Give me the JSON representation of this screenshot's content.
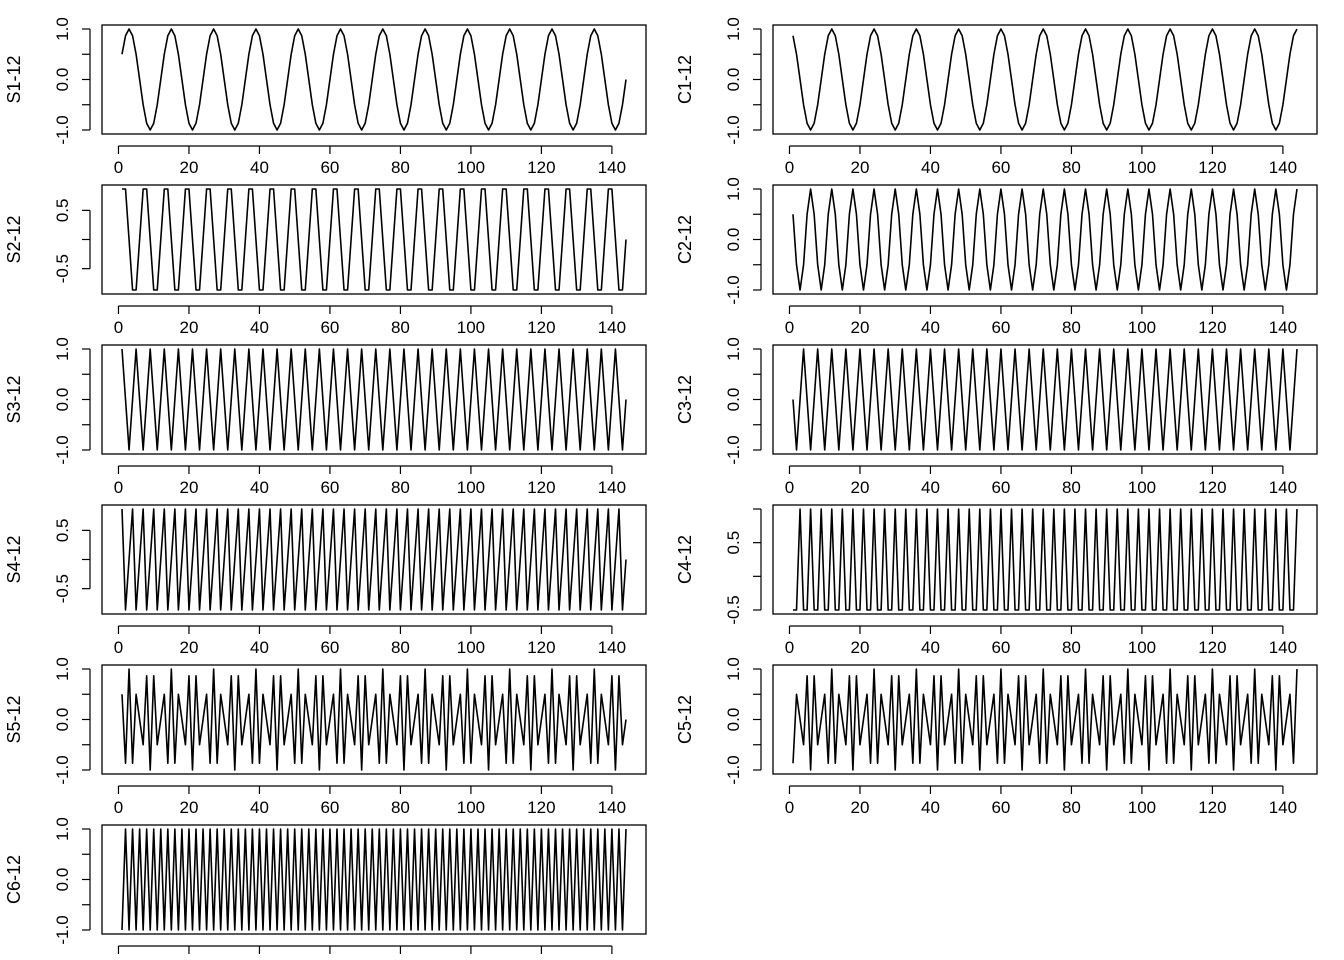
{
  "chart_data": [
    {
      "type": "line",
      "id": "s1",
      "ylabel": "S1-12",
      "xlim": [
        1,
        144
      ],
      "ylim": [
        -1,
        1
      ],
      "x_ticks": [
        "0",
        "20",
        "40",
        "60",
        "80",
        "100",
        "120",
        "140"
      ],
      "y_ticks": [
        "-1.0",
        "0.0",
        "1.0"
      ],
      "series": [
        {
          "period": 12,
          "phase": 0,
          "shape": "sine",
          "x": [
            1,
            144
          ]
        }
      ]
    },
    {
      "type": "line",
      "id": "c1",
      "ylabel": "C1-12",
      "xlim": [
        1,
        144
      ],
      "ylim": [
        -1,
        1
      ],
      "x_ticks": [
        "0",
        "20",
        "40",
        "60",
        "80",
        "100",
        "120",
        "140"
      ],
      "y_ticks": [
        "-1.0",
        "0.0",
        "1.0"
      ],
      "series": [
        {
          "period": 12,
          "phase": 0,
          "shape": "cosine",
          "x": [
            1,
            144
          ]
        }
      ]
    },
    {
      "type": "line",
      "id": "s2",
      "ylabel": "S2-12",
      "xlim": [
        1,
        144
      ],
      "ylim": [
        -0.866,
        0.866
      ],
      "x_ticks": [
        "0",
        "20",
        "40",
        "60",
        "80",
        "100",
        "120",
        "140"
      ],
      "y_ticks": [
        "-0.5",
        "0.5"
      ],
      "series": [
        {
          "period": 6,
          "phase": 0,
          "shape": "sine",
          "x": [
            1,
            144
          ]
        }
      ]
    },
    {
      "type": "line",
      "id": "c2",
      "ylabel": "C2-12",
      "xlim": [
        1,
        144
      ],
      "ylim": [
        -1,
        1
      ],
      "x_ticks": [
        "0",
        "20",
        "40",
        "60",
        "80",
        "100",
        "120",
        "140"
      ],
      "y_ticks": [
        "-1.0",
        "0.0",
        "1.0"
      ],
      "series": [
        {
          "period": 6,
          "phase": 0,
          "shape": "cosine",
          "x": [
            1,
            144
          ]
        }
      ]
    },
    {
      "type": "line",
      "id": "s3",
      "ylabel": "S3-12",
      "xlim": [
        1,
        144
      ],
      "ylim": [
        -1,
        1
      ],
      "x_ticks": [
        "0",
        "20",
        "40",
        "60",
        "80",
        "100",
        "120",
        "140"
      ],
      "y_ticks": [
        "-1.0",
        "0.0",
        "1.0"
      ],
      "series": [
        {
          "period": 4,
          "phase": 0,
          "shape": "sine",
          "x": [
            1,
            144
          ]
        }
      ]
    },
    {
      "type": "line",
      "id": "c3",
      "ylabel": "C3-12",
      "xlim": [
        1,
        144
      ],
      "ylim": [
        -1,
        1
      ],
      "x_ticks": [
        "0",
        "20",
        "40",
        "60",
        "80",
        "100",
        "120",
        "140"
      ],
      "y_ticks": [
        "-1.0",
        "0.0",
        "1.0"
      ],
      "series": [
        {
          "period": 4,
          "phase": 0,
          "shape": "cosine",
          "x": [
            1,
            144
          ]
        }
      ]
    },
    {
      "type": "line",
      "id": "s4",
      "ylabel": "S4-12",
      "xlim": [
        1,
        144
      ],
      "ylim": [
        -0.866,
        0.866
      ],
      "x_ticks": [
        "0",
        "20",
        "40",
        "60",
        "80",
        "100",
        "120",
        "140"
      ],
      "y_ticks": [
        "-0.5",
        "0.5"
      ],
      "series": [
        {
          "period": 3,
          "phase": 0,
          "shape": "sine",
          "x": [
            1,
            144
          ]
        }
      ]
    },
    {
      "type": "line",
      "id": "c4",
      "ylabel": "C4-12",
      "xlim": [
        1,
        144
      ],
      "ylim": [
        -0.5,
        1
      ],
      "x_ticks": [
        "0",
        "20",
        "40",
        "60",
        "80",
        "100",
        "120",
        "140"
      ],
      "y_ticks": [
        "-0.5",
        "0.5"
      ],
      "series": [
        {
          "period": 3,
          "phase": 0,
          "shape": "cosine",
          "x": [
            1,
            144
          ]
        }
      ]
    },
    {
      "type": "line",
      "id": "s5",
      "ylabel": "S5-12",
      "xlim": [
        1,
        144
      ],
      "ylim": [
        -1,
        1
      ],
      "x_ticks": [
        "0",
        "20",
        "40",
        "60",
        "80",
        "100",
        "120",
        "140"
      ],
      "y_ticks": [
        "-1.0",
        "0.0",
        "1.0"
      ],
      "series": [
        {
          "period": 2.4,
          "phase": 0,
          "shape": "sine",
          "x": [
            1,
            144
          ]
        }
      ]
    },
    {
      "type": "line",
      "id": "c5",
      "ylabel": "C5-12",
      "xlim": [
        1,
        144
      ],
      "ylim": [
        -1,
        1
      ],
      "x_ticks": [
        "0",
        "20",
        "40",
        "60",
        "80",
        "100",
        "120",
        "140"
      ],
      "y_ticks": [
        "-1.0",
        "0.0",
        "1.0"
      ],
      "series": [
        {
          "period": 2.4,
          "phase": 0,
          "shape": "cosine",
          "x": [
            1,
            144
          ]
        }
      ]
    },
    {
      "type": "line",
      "id": "c6",
      "ylabel": "C6-12",
      "xlim": [
        1,
        144
      ],
      "ylim": [
        -1,
        1
      ],
      "x_ticks": [],
      "y_ticks": [
        "-1.0",
        "0.0",
        "1.0"
      ],
      "series": [
        {
          "period": 2,
          "phase": 0,
          "shape": "cosine",
          "x": [
            1,
            144
          ]
        }
      ]
    }
  ],
  "colors": {
    "line": "#000000",
    "axis": "#000000",
    "background": "#ffffff"
  }
}
